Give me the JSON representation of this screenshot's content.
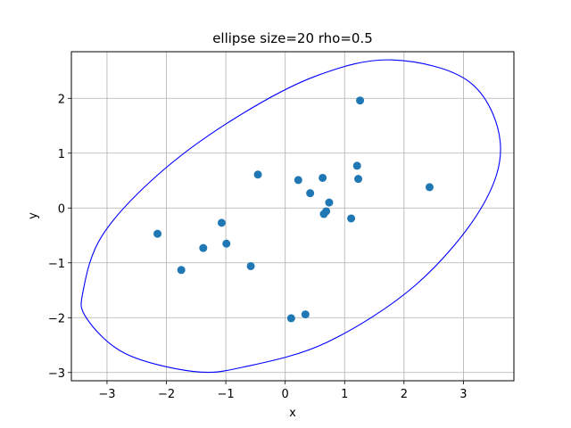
{
  "chart_data": {
    "type": "scatter",
    "title": "ellipse size=20 rho=0.5",
    "xlabel": "x",
    "ylabel": "y",
    "xlim": [
      -3.6,
      3.85
    ],
    "ylim": [
      -3.15,
      2.85
    ],
    "xticks": [
      -3,
      -2,
      -1,
      0,
      1,
      2,
      3
    ],
    "yticks": [
      -3,
      -2,
      -1,
      0,
      1,
      2
    ],
    "grid": true,
    "point_color": "#1f77b4",
    "ellipse_color": "#0000ff",
    "points": [
      {
        "x": -2.15,
        "y": -0.47
      },
      {
        "x": -1.75,
        "y": -1.13
      },
      {
        "x": -1.38,
        "y": -0.73
      },
      {
        "x": -1.07,
        "y": -0.27
      },
      {
        "x": -0.99,
        "y": -0.65
      },
      {
        "x": -0.58,
        "y": -1.06
      },
      {
        "x": -0.46,
        "y": 0.61
      },
      {
        "x": 0.1,
        "y": -2.01
      },
      {
        "x": 0.22,
        "y": 0.51
      },
      {
        "x": 0.34,
        "y": -1.94
      },
      {
        "x": 0.42,
        "y": 0.27
      },
      {
        "x": 0.63,
        "y": 0.55
      },
      {
        "x": 0.65,
        "y": -0.11
      },
      {
        "x": 0.69,
        "y": -0.06
      },
      {
        "x": 0.74,
        "y": 0.1
      },
      {
        "x": 1.11,
        "y": -0.19
      },
      {
        "x": 1.21,
        "y": 0.77
      },
      {
        "x": 1.23,
        "y": 0.53
      },
      {
        "x": 1.26,
        "y": 1.96
      },
      {
        "x": 2.43,
        "y": 0.38
      }
    ],
    "ellipse_outline": [
      {
        "x": -3.4,
        "y": -1.5
      },
      {
        "x": -3.08,
        "y": -0.5
      },
      {
        "x": -2.15,
        "y": 0.6
      },
      {
        "x": -0.9,
        "y": 1.6
      },
      {
        "x": 0.5,
        "y": 2.4
      },
      {
        "x": 1.8,
        "y": 2.7
      },
      {
        "x": 3.1,
        "y": 2.3
      },
      {
        "x": 3.62,
        "y": 1.2
      },
      {
        "x": 3.3,
        "y": 0.0
      },
      {
        "x": 2.2,
        "y": -1.4
      },
      {
        "x": 0.7,
        "y": -2.45
      },
      {
        "x": -0.7,
        "y": -2.9
      },
      {
        "x": -1.55,
        "y": -2.98
      },
      {
        "x": -2.7,
        "y": -2.65
      },
      {
        "x": -3.35,
        "y": -2.0
      }
    ]
  }
}
